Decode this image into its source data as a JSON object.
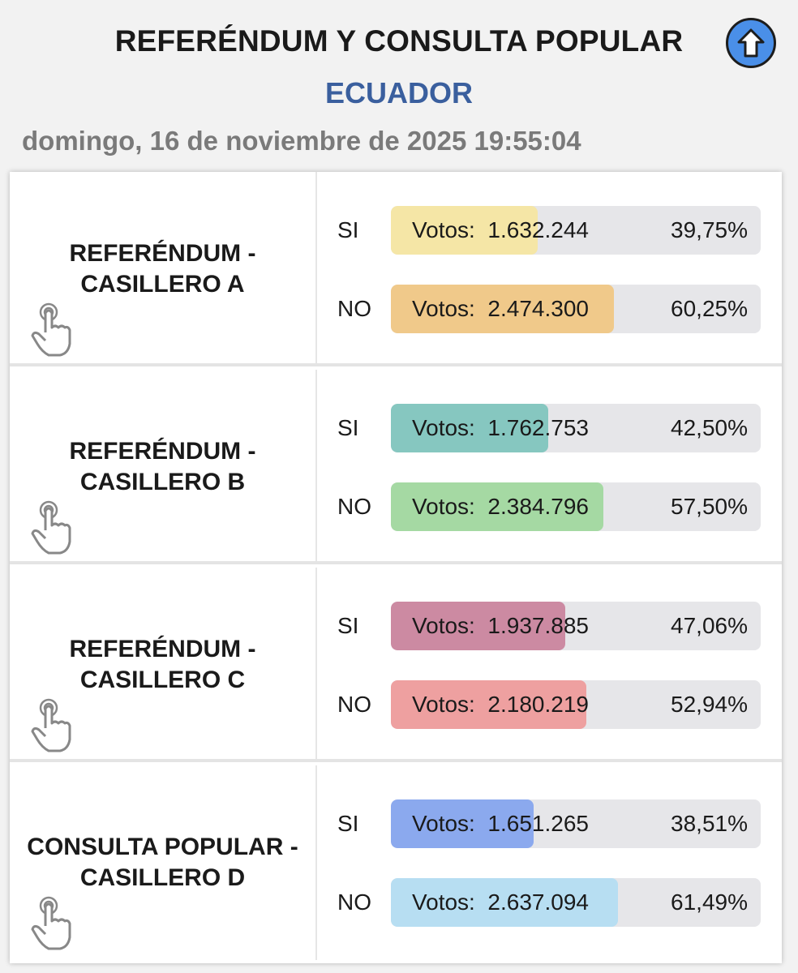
{
  "header": {
    "title": "REFERÉNDUM Y CONSULTA POPULAR",
    "subtitle": "ECUADOR",
    "datetime": "domingo, 16 de noviembre de 2025 19:55:04",
    "up_icon": "arrow-up-circle-icon",
    "up_color": "#4a8fe8"
  },
  "vote_prefix": "Votos:",
  "questions": [
    {
      "label_line1": "REFERÉNDUM -",
      "label_line2": "CASILLERO A",
      "icon": "tap-hand-icon",
      "options": [
        {
          "option": "SI",
          "votes": "1.632.244",
          "percent": "39,75%",
          "fraction": 0.3975,
          "color": "#f5e6a6"
        },
        {
          "option": "NO",
          "votes": "2.474.300",
          "percent": "60,25%",
          "fraction": 0.6025,
          "color": "#f0c98a"
        }
      ]
    },
    {
      "label_line1": "REFERÉNDUM -",
      "label_line2": "CASILLERO B",
      "icon": "tap-hand-icon",
      "options": [
        {
          "option": "SI",
          "votes": "1.762.753",
          "percent": "42,50%",
          "fraction": 0.425,
          "color": "#86c7c0"
        },
        {
          "option": "NO",
          "votes": "2.384.796",
          "percent": "57,50%",
          "fraction": 0.575,
          "color": "#a5d9a3"
        }
      ]
    },
    {
      "label_line1": "REFERÉNDUM -",
      "label_line2": "CASILLERO C",
      "icon": "tap-hand-icon",
      "options": [
        {
          "option": "SI",
          "votes": "1.937.885",
          "percent": "47,06%",
          "fraction": 0.4706,
          "color": "#cc8aa2"
        },
        {
          "option": "NO",
          "votes": "2.180.219",
          "percent": "52,94%",
          "fraction": 0.5294,
          "color": "#eea0a0"
        }
      ]
    },
    {
      "label_line1": "CONSULTA POPULAR -",
      "label_line2": "CASILLERO D",
      "icon": "tap-hand-icon",
      "options": [
        {
          "option": "SI",
          "votes": "1.651.265",
          "percent": "38,51%",
          "fraction": 0.3851,
          "color": "#8ba9ee"
        },
        {
          "option": "NO",
          "votes": "2.637.094",
          "percent": "61,49%",
          "fraction": 0.6149,
          "color": "#b7def2"
        }
      ]
    }
  ]
}
